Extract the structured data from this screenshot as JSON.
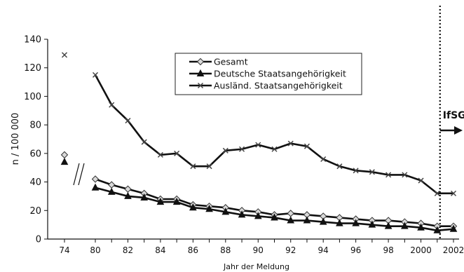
{
  "chart_data": {
    "type": "line",
    "title": "",
    "xlabel": "Jahr der Meldung",
    "ylabel": "n / 100 000",
    "ylim": [
      0,
      140
    ],
    "y_ticks": [
      0,
      20,
      40,
      60,
      80,
      100,
      120,
      140
    ],
    "x_ticks": [
      "74",
      "80",
      "82",
      "84",
      "86",
      "88",
      "90",
      "92",
      "94",
      "96",
      "98",
      "2000",
      "2002"
    ],
    "x_tick_years": [
      1974,
      1980,
      1982,
      1984,
      1986,
      1988,
      1990,
      1992,
      1994,
      1996,
      1998,
      2000,
      2002
    ],
    "grid": false,
    "legend_position": "top-center",
    "axis_break": "between 1974 and 1980",
    "annotation": {
      "label": "IfSG",
      "year": 2001,
      "style": "dotted vertical line with right arrow"
    },
    "series": [
      {
        "name": "Gesamt",
        "marker": "diamond",
        "isolated_1974": 59,
        "x": [
          1980,
          1981,
          1982,
          1983,
          1984,
          1985,
          1986,
          1987,
          1988,
          1989,
          1990,
          1991,
          1992,
          1993,
          1994,
          1995,
          1996,
          1997,
          1998,
          1999,
          2000,
          2001,
          2002
        ],
        "values": [
          42,
          38,
          35,
          32,
          28,
          28,
          24,
          23,
          22,
          20,
          19,
          17,
          18,
          17,
          16,
          15,
          14,
          13,
          13,
          12,
          11,
          9,
          9
        ]
      },
      {
        "name": "Deutsche Staatsangehörigkeit",
        "marker": "triangle",
        "isolated_1974": 54,
        "x": [
          1980,
          1981,
          1982,
          1983,
          1984,
          1985,
          1986,
          1987,
          1988,
          1989,
          1990,
          1991,
          1992,
          1993,
          1994,
          1995,
          1996,
          1997,
          1998,
          1999,
          2000,
          2001,
          2002
        ],
        "values": [
          36,
          33,
          30,
          29,
          26,
          26,
          22,
          21,
          19,
          17,
          16,
          15,
          13,
          13,
          12,
          11,
          11,
          10,
          9,
          9,
          8,
          6,
          7
        ]
      },
      {
        "name": "Ausländ. Staatsangehörigkeit",
        "marker": "x",
        "isolated_1974": 129,
        "x": [
          1980,
          1981,
          1982,
          1983,
          1984,
          1985,
          1986,
          1987,
          1988,
          1989,
          1990,
          1991,
          1992,
          1993,
          1994,
          1995,
          1996,
          1997,
          1998,
          1999,
          2000,
          2001,
          2002
        ],
        "values": [
          115,
          94,
          83,
          68,
          59,
          60,
          51,
          51,
          62,
          63,
          66,
          63,
          67,
          65,
          56,
          51,
          48,
          47,
          45,
          45,
          41,
          32,
          32
        ]
      }
    ]
  }
}
